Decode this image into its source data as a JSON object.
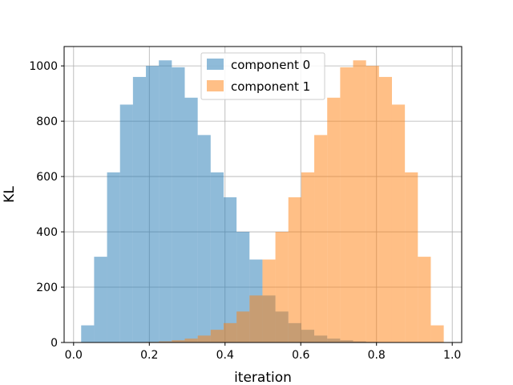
{
  "chart_data": {
    "type": "bar",
    "title": "",
    "xlabel": "iteration",
    "ylabel": "KL",
    "xlim": [
      -0.025,
      1.025
    ],
    "ylim": [
      0,
      1070
    ],
    "xticks": [
      "0.0",
      "0.2",
      "0.4",
      "0.6",
      "0.8",
      "1.0"
    ],
    "yticks": [
      "0",
      "200",
      "400",
      "600",
      "800",
      "1000"
    ],
    "grid": true,
    "legend_position": "top-center",
    "bin_edges": [
      0.02,
      0.0542,
      0.0884,
      0.1226,
      0.1568,
      0.191,
      0.2252,
      0.2594,
      0.2936,
      0.3278,
      0.362,
      0.3962,
      0.4304,
      0.4646,
      0.4988,
      0.533,
      0.5672,
      0.6014,
      0.6356,
      0.6698,
      0.704,
      0.7382,
      0.7724,
      0.8066,
      0.8408,
      0.875,
      0.9092,
      0.9434,
      0.9776
    ],
    "series": [
      {
        "name": "component 0",
        "color": "#1f77b4",
        "opacity": 0.5,
        "values": [
          62,
          310,
          615,
          860,
          960,
          1000,
          1020,
          995,
          885,
          750,
          615,
          525,
          400,
          300,
          170,
          112,
          70,
          46,
          25,
          14,
          8,
          4,
          2,
          1,
          0,
          0,
          0,
          0
        ]
      },
      {
        "name": "component 1",
        "color": "#ff7f0e",
        "opacity": 0.5,
        "values": [
          0,
          0,
          0,
          0,
          0,
          2,
          4,
          8,
          14,
          25,
          46,
          70,
          112,
          170,
          300,
          400,
          525,
          615,
          750,
          885,
          995,
          1020,
          1000,
          960,
          860,
          615,
          310,
          62
        ]
      }
    ]
  }
}
